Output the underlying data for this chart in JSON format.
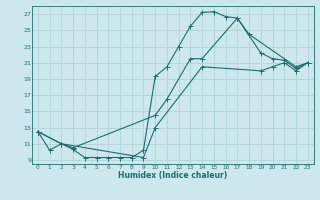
{
  "xlabel": "Humidex (Indice chaleur)",
  "bg_color": "#cce8ed",
  "grid_color": "#b0d4da",
  "line_color": "#1a6e6e",
  "xlim": [
    -0.5,
    23.5
  ],
  "ylim": [
    8.5,
    28
  ],
  "xticks": [
    0,
    1,
    2,
    3,
    4,
    5,
    6,
    7,
    8,
    9,
    10,
    11,
    12,
    13,
    14,
    15,
    16,
    17,
    18,
    19,
    20,
    21,
    22,
    23
  ],
  "yticks": [
    9,
    11,
    13,
    15,
    17,
    19,
    21,
    23,
    25,
    27
  ],
  "line1_x": [
    0,
    1,
    2,
    3,
    4,
    5,
    6,
    7,
    8,
    9,
    10,
    11,
    12,
    13,
    14,
    15,
    16,
    17,
    18,
    22,
    23
  ],
  "line1_y": [
    12.5,
    10.2,
    11.0,
    10.3,
    9.3,
    9.3,
    9.3,
    9.3,
    9.3,
    10.2,
    19.3,
    20.5,
    23.0,
    25.5,
    27.2,
    27.3,
    26.7,
    26.5,
    24.5,
    20.5,
    21.0
  ],
  "line2_x": [
    0,
    2,
    3,
    10,
    11,
    13,
    14,
    17,
    19,
    20,
    21,
    22,
    23
  ],
  "line2_y": [
    12.5,
    11.0,
    10.5,
    14.5,
    16.5,
    21.5,
    21.5,
    26.5,
    22.2,
    21.5,
    21.3,
    20.3,
    21.0
  ],
  "line3_x": [
    0,
    2,
    9,
    10,
    14,
    19,
    20,
    21,
    22,
    23
  ],
  "line3_y": [
    12.5,
    11.0,
    9.3,
    13.0,
    20.5,
    20.0,
    20.5,
    21.0,
    20.0,
    21.0
  ]
}
